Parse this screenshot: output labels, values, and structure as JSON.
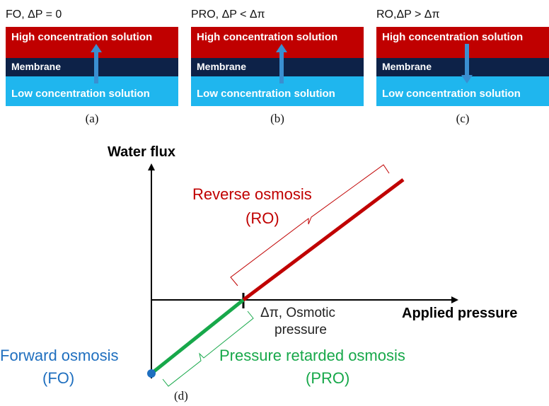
{
  "colors": {
    "high": "#c00000",
    "membrane": "#0d2248",
    "low": "#1fb6ee",
    "arrow": "#3a8fd1",
    "ro_line": "#c00000",
    "pro_line": "#17a84a",
    "fo_point": "#1f6fbf",
    "axis": "#000000"
  },
  "panels": [
    {
      "title": "FO, ΔP = 0",
      "high_label": "High concentration solution",
      "membrane_label": "Membrane",
      "low_label": "Low concentration solution",
      "arrow_direction": "up",
      "caption": "(a)"
    },
    {
      "title": "PRO,  ΔP < Δπ",
      "high_label": "High concentration solution",
      "membrane_label": "Membrane",
      "low_label": "Low concentration solution",
      "arrow_direction": "up",
      "caption": "(b)"
    },
    {
      "title": "RO,ΔP > Δπ",
      "high_label": "High concentration solution",
      "membrane_label": "Membrane",
      "low_label": "Low concentration solution",
      "arrow_direction": "down",
      "caption": "(c)"
    }
  ],
  "graph": {
    "y_axis_label": "Water flux",
    "x_axis_label": "Applied pressure",
    "delta_pi_label": "Δπ, Osmotic",
    "delta_pi_label_line2": "pressure",
    "ro_label_line1": "Reverse osmosis",
    "ro_label_line2": "(RO)",
    "pro_label_line1": "Pressure retarded osmosis",
    "pro_label_line2": "(PRO)",
    "fo_label_line1": "Forward osmosis",
    "fo_label_line2": "(FO)",
    "caption": "(d)"
  }
}
